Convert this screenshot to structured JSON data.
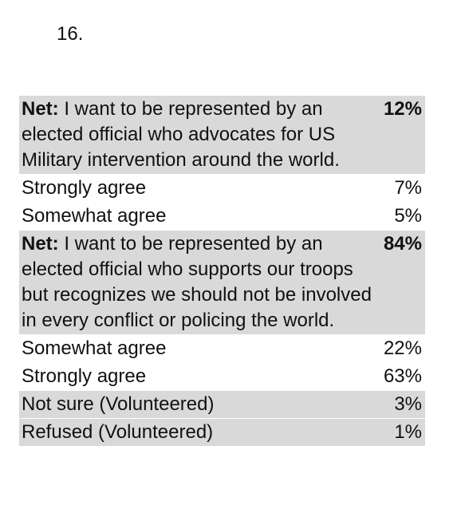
{
  "question_number": "16.",
  "table": {
    "rows": [
      {
        "kind": "net",
        "prefix": "Net:",
        "label": "I want to be represented by an elected official who advocates for US Military intervention around the world.",
        "value": "12%"
      },
      {
        "kind": "plain",
        "label": "Strongly agree",
        "value": "7%"
      },
      {
        "kind": "plain",
        "label": "Somewhat agree",
        "value": "5%"
      },
      {
        "kind": "net",
        "prefix": "Net:",
        "label": "I want to be represented by an elected official who supports our troops but recognizes we should not be involved in every conflict or policing the world.",
        "value": "84%"
      },
      {
        "kind": "plain",
        "label": "Somewhat agree",
        "value": "22%"
      },
      {
        "kind": "plain",
        "label": "Strongly agree",
        "value": "63%"
      },
      {
        "kind": "shade",
        "label": "Not sure (Volunteered)",
        "value": "3%"
      },
      {
        "kind": "shade",
        "label": "Refused (Volunteered)",
        "value": "1%"
      }
    ]
  }
}
